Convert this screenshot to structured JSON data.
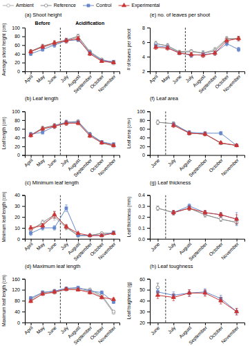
{
  "chart_data": [
    {
      "type": "line",
      "title": "(a) Shoot height",
      "ylabel": "Average shoot height (cm)",
      "categories": [
        "April",
        "May",
        "June",
        "July",
        "August",
        "September",
        "October",
        "November"
      ],
      "ylim": [
        0,
        100
      ],
      "yticks": [
        0,
        20,
        40,
        60,
        80,
        100
      ],
      "divider_after": "June",
      "annotations": [
        "Before",
        "Acidification"
      ],
      "legend": "upper left",
      "series": [
        {
          "name": "Ambient",
          "color": "#aaaaaa",
          "marker": "circle-open",
          "values": [
            46,
            55,
            62,
            70,
            79,
            42,
            25,
            18
          ],
          "errors": [
            3,
            4,
            4,
            4,
            5,
            4,
            3,
            3
          ]
        },
        {
          "name": "Reference",
          "color": "#888888",
          "marker": "circle-open",
          "values": [
            46,
            58,
            65,
            72,
            80,
            45,
            27,
            20
          ],
          "errors": [
            3,
            4,
            4,
            4,
            5,
            4,
            3,
            3
          ]
        },
        {
          "name": "Control",
          "color": "#6688cc",
          "marker": "square",
          "values": [
            40,
            50,
            60,
            70,
            72,
            43,
            25,
            22
          ],
          "errors": [
            4,
            4,
            5,
            5,
            4,
            4,
            3,
            3
          ]
        },
        {
          "name": "Experimental",
          "color": "#cc3333",
          "marker": "triangle",
          "values": [
            45,
            56,
            65,
            70,
            75,
            40,
            23,
            20
          ],
          "errors": [
            4,
            4,
            5,
            5,
            5,
            4,
            3,
            3
          ]
        }
      ]
    },
    {
      "type": "line",
      "title": "(b) Leaf length",
      "ylabel": "Leaf length (cm)",
      "categories": [
        "April",
        "May",
        "June",
        "July",
        "August",
        "September",
        "October",
        "November"
      ],
      "ylim": [
        0,
        100
      ],
      "yticks": [
        0,
        20,
        40,
        60,
        80,
        100
      ],
      "divider_after": "June",
      "series": [
        {
          "name": "Ambient",
          "color": "#aaaaaa",
          "marker": "circle-open",
          "values": [
            46,
            60,
            66,
            72,
            75,
            47,
            28,
            20
          ],
          "errors": [
            3,
            4,
            4,
            4,
            4,
            4,
            3,
            3
          ]
        },
        {
          "name": "Reference",
          "color": "#888888",
          "marker": "circle-open",
          "values": [
            46,
            62,
            68,
            75,
            77,
            48,
            30,
            22
          ],
          "errors": [
            3,
            4,
            4,
            4,
            4,
            4,
            3,
            3
          ]
        },
        {
          "name": "Control",
          "color": "#6688cc",
          "marker": "square",
          "values": [
            48,
            52,
            66,
            75,
            75,
            47,
            30,
            25
          ],
          "errors": [
            4,
            4,
            5,
            5,
            4,
            4,
            3,
            3
          ]
        },
        {
          "name": "Experimental",
          "color": "#cc3333",
          "marker": "triangle",
          "values": [
            45,
            60,
            66,
            73,
            73,
            44,
            28,
            22
          ],
          "errors": [
            4,
            4,
            5,
            5,
            4,
            4,
            3,
            3
          ]
        }
      ]
    },
    {
      "type": "line",
      "title": "(c) Minimum leaf length",
      "ylabel": "Minimum leaf length (cm)",
      "categories": [
        "April",
        "May",
        "June",
        "July",
        "August",
        "September",
        "October",
        "November"
      ],
      "ylim": [
        0,
        40
      ],
      "yticks": [
        0,
        10,
        20,
        30,
        40
      ],
      "divider_after": "June",
      "series": [
        {
          "name": "Ambient",
          "color": "#aaaaaa",
          "marker": "circle-open",
          "values": [
            8,
            14,
            20,
            10,
            3,
            3,
            5,
            5
          ],
          "errors": [
            2,
            2,
            3,
            2,
            1,
            1,
            1,
            1
          ]
        },
        {
          "name": "Reference",
          "color": "#888888",
          "marker": "circle-open",
          "values": [
            8,
            15,
            22,
            11,
            3,
            3,
            5,
            5
          ],
          "errors": [
            2,
            2,
            3,
            2,
            1,
            1,
            1,
            1
          ]
        },
        {
          "name": "Control",
          "color": "#6688cc",
          "marker": "square",
          "values": [
            5,
            10,
            10,
            28,
            3,
            3,
            3,
            6
          ],
          "errors": [
            2,
            2,
            2,
            3,
            1,
            1,
            1,
            1
          ]
        },
        {
          "name": "Experimental",
          "color": "#cc3333",
          "marker": "triangle",
          "values": [
            10,
            12,
            22,
            11,
            5,
            3,
            3,
            5
          ],
          "errors": [
            2,
            2,
            3,
            2,
            1,
            1,
            1,
            1
          ]
        }
      ]
    },
    {
      "type": "line",
      "title": "(d) Maximum leaf length",
      "ylabel": "Maximum leaf length (cm)",
      "categories": [
        "April",
        "May",
        "June",
        "July",
        "August",
        "September",
        "October",
        "November"
      ],
      "ylim": [
        0,
        160
      ],
      "yticks": [
        0,
        40,
        80,
        120,
        160
      ],
      "divider_after": "June",
      "series": [
        {
          "name": "Ambient",
          "color": "#aaaaaa",
          "marker": "circle-open",
          "values": [
            80,
            105,
            110,
            120,
            120,
            115,
            95,
            35
          ],
          "errors": [
            5,
            6,
            6,
            5,
            5,
            6,
            6,
            4
          ]
        },
        {
          "name": "Reference",
          "color": "#888888",
          "marker": "circle-open",
          "values": [
            85,
            110,
            115,
            125,
            125,
            120,
            100,
            40
          ],
          "errors": [
            5,
            6,
            6,
            5,
            5,
            6,
            6,
            4
          ]
        },
        {
          "name": "Control",
          "color": "#6688cc",
          "marker": "square",
          "values": [
            90,
            110,
            115,
            125,
            128,
            115,
            110,
            75
          ],
          "errors": [
            5,
            6,
            6,
            5,
            5,
            6,
            6,
            5
          ]
        },
        {
          "name": "Experimental",
          "color": "#cc3333",
          "marker": "triangle",
          "values": [
            78,
            105,
            112,
            122,
            120,
            110,
            92,
            85
          ],
          "errors": [
            5,
            6,
            6,
            5,
            5,
            6,
            6,
            5
          ]
        }
      ]
    },
    {
      "type": "line",
      "title": "(e) no. of leaves per shoot",
      "ylabel": "# of leaves per shoot",
      "categories": [
        "April",
        "May",
        "June",
        "July",
        "August",
        "September",
        "October",
        "November"
      ],
      "ylim": [
        2,
        8
      ],
      "yticks": [
        2,
        4,
        6,
        8
      ],
      "divider_after": "June",
      "series": [
        {
          "name": "Ambient",
          "color": "#aaaaaa",
          "marker": "circle-open",
          "values": [
            5.8,
            5.5,
            4.7,
            4.8,
            4.5,
            5.0,
            6.5,
            6.5
          ],
          "errors": [
            0.3,
            0.3,
            0.2,
            0.2,
            0.3,
            0.3,
            0.3,
            0.3
          ]
        },
        {
          "name": "Reference",
          "color": "#888888",
          "marker": "circle-open",
          "values": [
            5.8,
            5.5,
            4.6,
            4.7,
            4.5,
            4.8,
            6.4,
            6.5
          ],
          "errors": [
            0.3,
            0.3,
            0.2,
            0.2,
            0.3,
            0.3,
            0.3,
            0.3
          ]
        },
        {
          "name": "Control",
          "color": "#6688cc",
          "marker": "square",
          "values": [
            5.5,
            5.3,
            4.5,
            4.2,
            4.3,
            4.5,
            5.8,
            5.0
          ],
          "errors": [
            0.3,
            0.3,
            0.2,
            0.3,
            0.3,
            0.3,
            0.3,
            0.3
          ]
        },
        {
          "name": "Experimental",
          "color": "#cc3333",
          "marker": "triangle",
          "values": [
            5.3,
            5.2,
            4.5,
            4.3,
            4.2,
            4.5,
            6.2,
            6.5
          ],
          "errors": [
            0.3,
            0.3,
            0.2,
            0.3,
            0.3,
            0.3,
            0.3,
            0.3
          ]
        }
      ]
    },
    {
      "type": "line",
      "title": "(f) Leaf area",
      "ylabel": "Leaf area (cm²)",
      "categories": [
        "June",
        "July",
        "August",
        "September",
        "October",
        "November"
      ],
      "ylim": [
        0,
        100
      ],
      "yticks": [
        0,
        20,
        40,
        60,
        80,
        100
      ],
      "divider_after": "June",
      "series": [
        {
          "name": "Ambient",
          "color": "#aaaaaa",
          "marker": "circle-open",
          "values": [
            75,
            72,
            50,
            48,
            27,
            22
          ],
          "errors": [
            5,
            4,
            4,
            4,
            3,
            3
          ]
        },
        {
          "name": "Reference",
          "color": "#888888",
          "marker": "circle-open",
          "values": [
            75,
            72,
            50,
            48,
            27,
            22
          ],
          "errors": [
            5,
            4,
            4,
            4,
            3,
            3
          ]
        },
        {
          "name": "Control",
          "color": "#6688cc",
          "marker": "square",
          "values": [
            null,
            70,
            52,
            50,
            50,
            22
          ],
          "errors": [
            null,
            5,
            4,
            4,
            4,
            3
          ]
        },
        {
          "name": "Experimental",
          "color": "#cc3333",
          "marker": "triangle",
          "values": [
            null,
            68,
            50,
            48,
            28,
            22
          ],
          "errors": [
            null,
            5,
            4,
            4,
            3,
            3
          ]
        }
      ]
    },
    {
      "type": "line",
      "title": "(g) Leaf thickness",
      "ylabel": "Leaf thickness (mm)",
      "categories": [
        "June",
        "July",
        "August",
        "September",
        "October",
        "November"
      ],
      "ylim": [
        0.0,
        0.4
      ],
      "yticks": [
        {
          "value": 0.0,
          "label": "0.0"
        },
        0.1,
        0.2,
        0.3,
        0.4
      ],
      "divider_after": "June",
      "series": [
        {
          "name": "Ambient",
          "color": "#aaaaaa",
          "marker": "circle-open",
          "values": [
            0.28,
            0.24,
            0.28,
            0.22,
            0.18,
            0.15
          ],
          "errors": [
            0.02,
            0.02,
            0.02,
            0.02,
            0.02,
            0.02
          ]
        },
        {
          "name": "Reference",
          "color": "#888888",
          "marker": "circle-open",
          "values": [
            0.28,
            0.24,
            0.28,
            0.22,
            0.18,
            0.15
          ],
          "errors": [
            0.02,
            0.02,
            0.02,
            0.02,
            0.02,
            0.02
          ]
        },
        {
          "name": "Control",
          "color": "#6688cc",
          "marker": "square",
          "values": [
            null,
            0.24,
            0.3,
            0.24,
            0.22,
            0.18
          ],
          "errors": [
            null,
            0.02,
            0.02,
            0.02,
            0.02,
            0.06
          ]
        },
        {
          "name": "Experimental",
          "color": "#cc3333",
          "marker": "triangle",
          "values": [
            null,
            0.24,
            0.28,
            0.24,
            0.22,
            0.18
          ],
          "errors": [
            null,
            0.02,
            0.02,
            0.02,
            0.02,
            0.04
          ]
        }
      ]
    },
    {
      "type": "line",
      "title": "(h) Leaf toughness",
      "ylabel": "Leaf toughness (g)",
      "categories": [
        "June",
        "July",
        "August",
        "September",
        "October",
        "November"
      ],
      "ylim": [
        20,
        60
      ],
      "yticks": [
        20,
        30,
        40,
        50,
        60
      ],
      "divider_after": "June",
      "series": [
        {
          "name": "Ambient",
          "color": "#aaaaaa",
          "marker": "circle-open",
          "values": [
            52,
            null,
            null,
            null,
            null,
            null
          ],
          "errors": [
            4,
            null,
            null,
            null,
            null,
            null
          ]
        },
        {
          "name": "Reference",
          "color": "#888888",
          "marker": "circle-open",
          "values": [
            52,
            null,
            null,
            null,
            null,
            null
          ],
          "errors": [
            4,
            null,
            null,
            null,
            null,
            null
          ]
        },
        {
          "name": "Control",
          "color": "#6688cc",
          "marker": "square",
          "values": [
            48,
            45,
            47,
            48,
            42,
            30
          ],
          "errors": [
            3,
            3,
            3,
            3,
            3,
            3
          ]
        },
        {
          "name": "Experimental",
          "color": "#cc3333",
          "marker": "triangle",
          "values": [
            45,
            43,
            47,
            47,
            40,
            30
          ],
          "errors": [
            3,
            3,
            3,
            3,
            3,
            3
          ]
        }
      ]
    }
  ]
}
